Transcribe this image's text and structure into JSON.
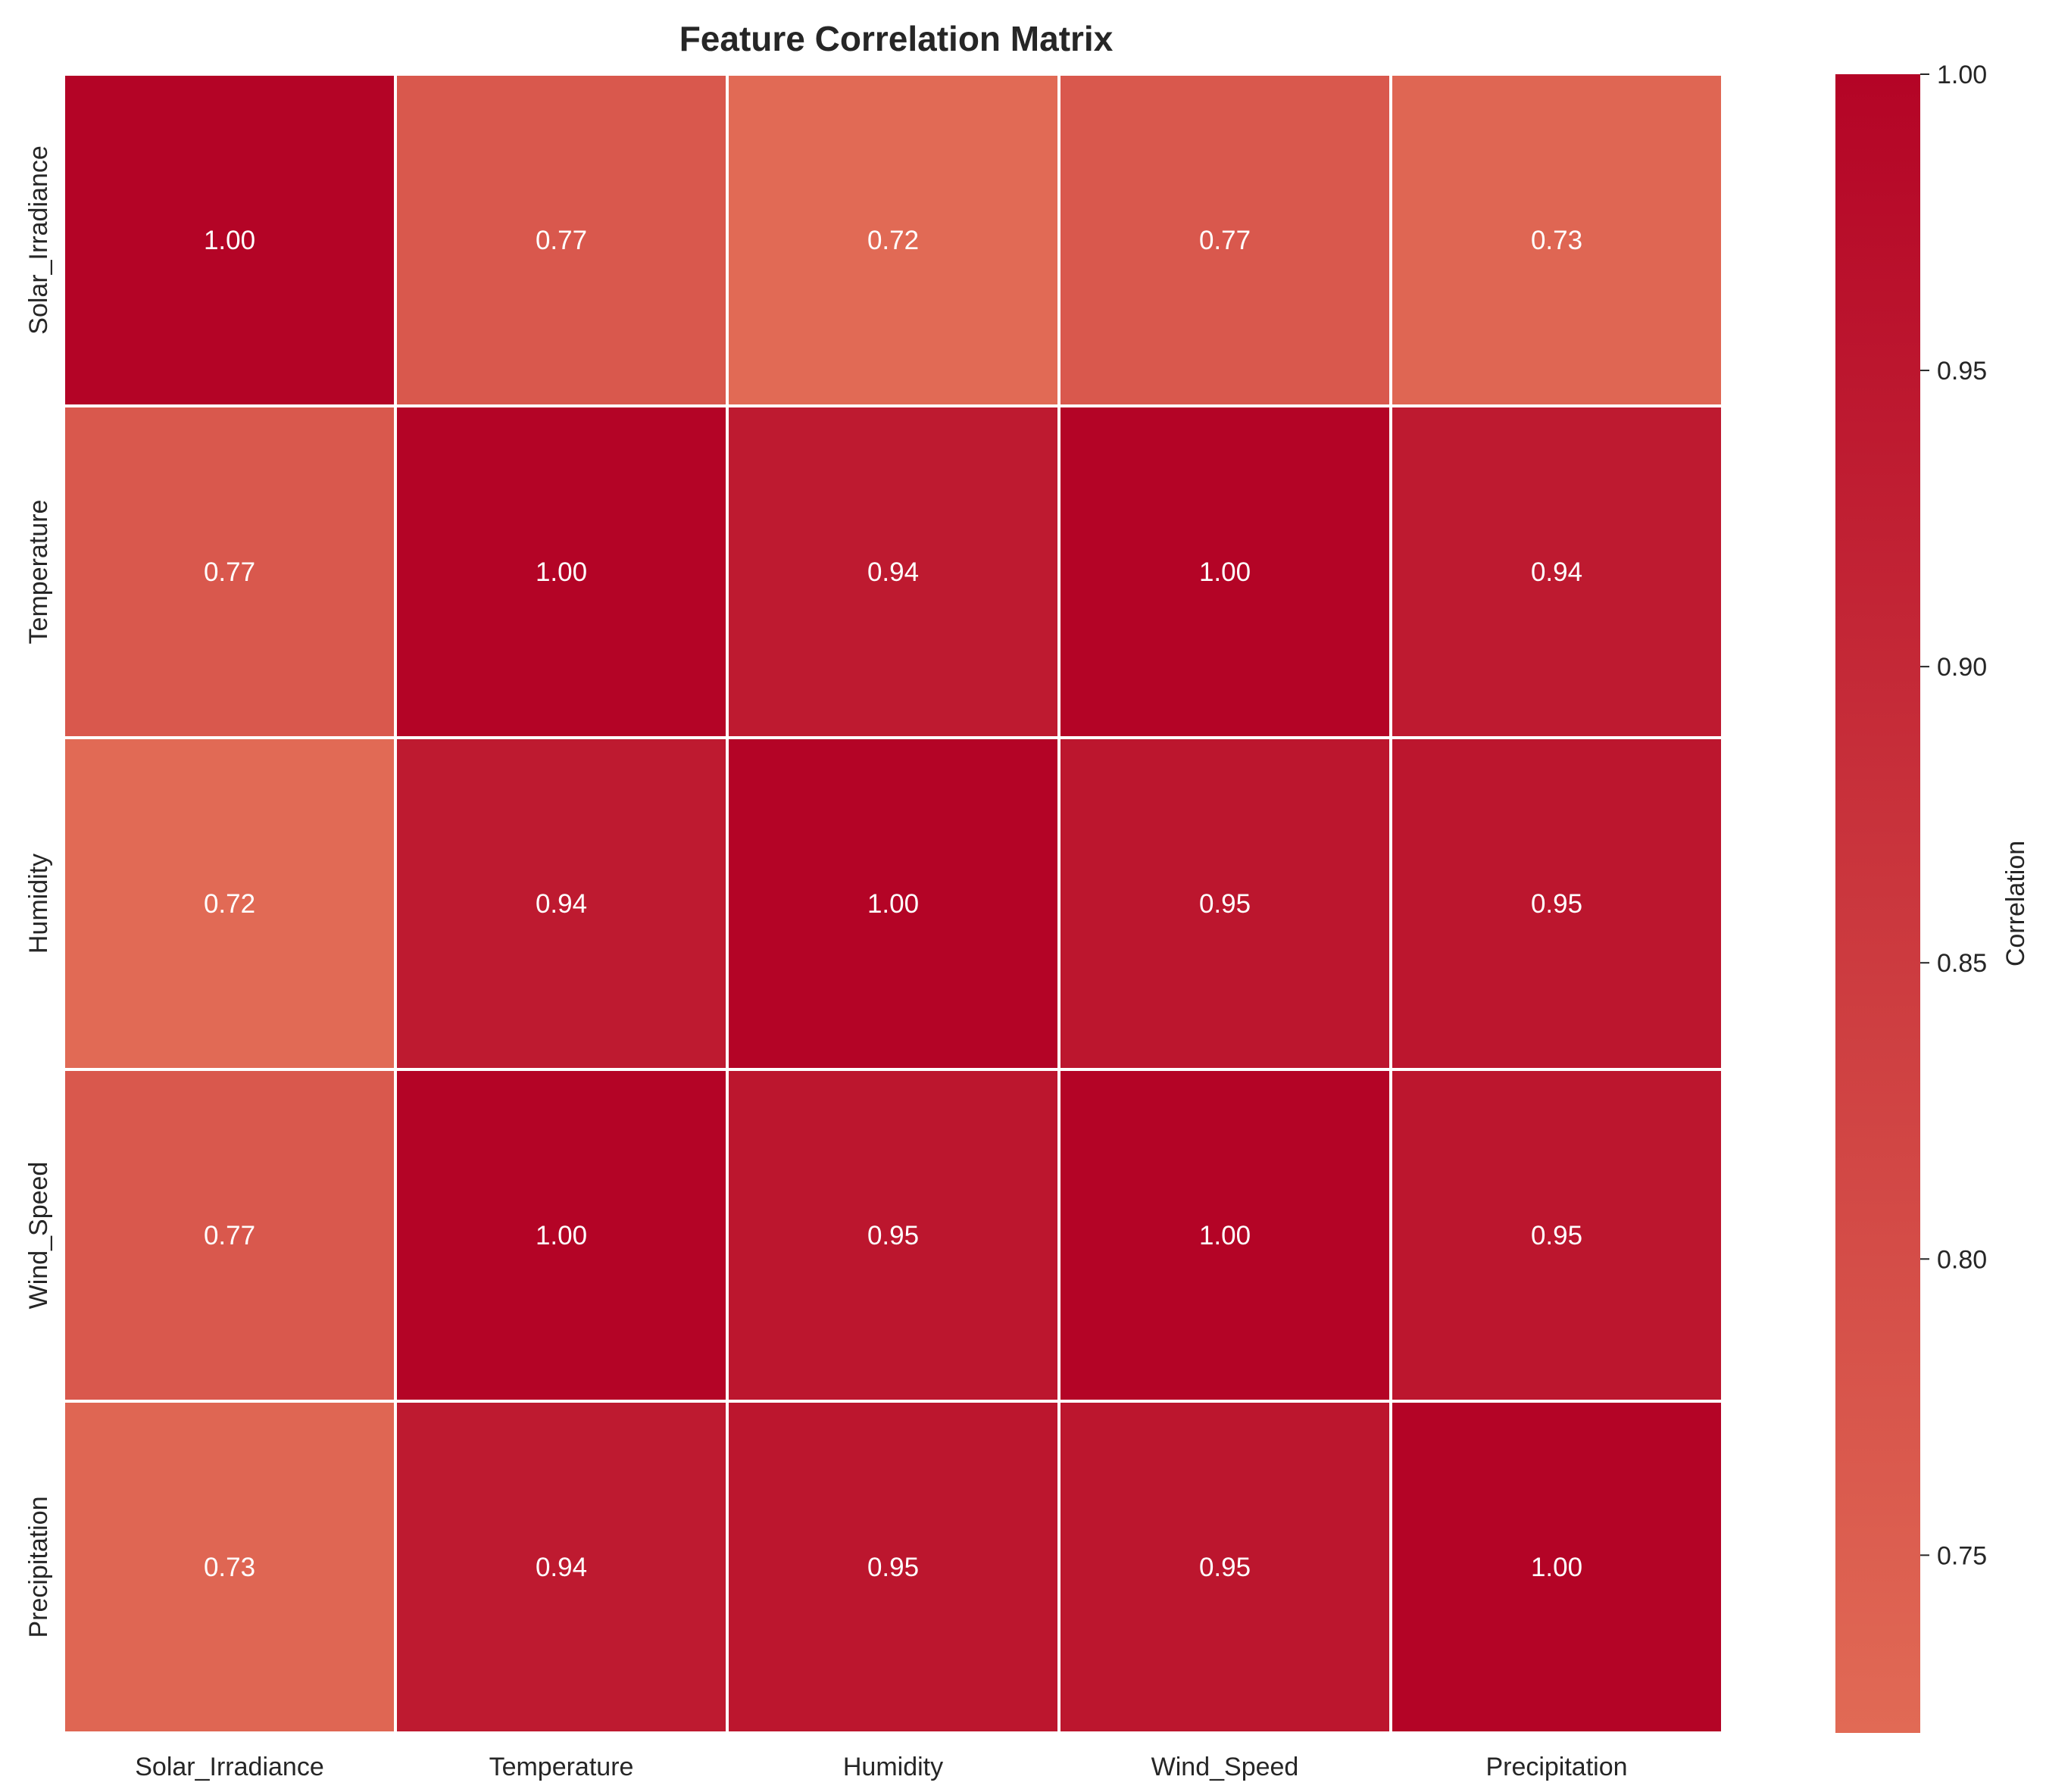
{
  "chart_data": {
    "type": "heatmap",
    "title": "Feature Correlation Matrix",
    "x_labels": [
      "Solar_Irradiance",
      "Temperature",
      "Humidity",
      "Wind_Speed",
      "Precipitation"
    ],
    "y_labels": [
      "Solar_Irradiance",
      "Temperature",
      "Humidity",
      "Wind_Speed",
      "Precipitation"
    ],
    "values": [
      [
        1.0,
        0.77,
        0.72,
        0.77,
        0.73
      ],
      [
        0.77,
        1.0,
        0.94,
        1.0,
        0.94
      ],
      [
        0.72,
        0.94,
        1.0,
        0.95,
        0.95
      ],
      [
        0.77,
        1.0,
        0.95,
        1.0,
        0.95
      ],
      [
        0.73,
        0.94,
        0.95,
        0.95,
        1.0
      ]
    ],
    "value_format": "2 decimals",
    "colorbar": {
      "label": "Correlation",
      "range": [
        0.72,
        1.0
      ],
      "ticks": [
        0.75,
        0.8,
        0.85,
        0.9,
        0.95,
        1.0
      ]
    },
    "colors": {
      "low": "#e16a55",
      "high": "#b40426",
      "cell_border": "#ffffff",
      "cell_text": "#ffffff"
    }
  }
}
